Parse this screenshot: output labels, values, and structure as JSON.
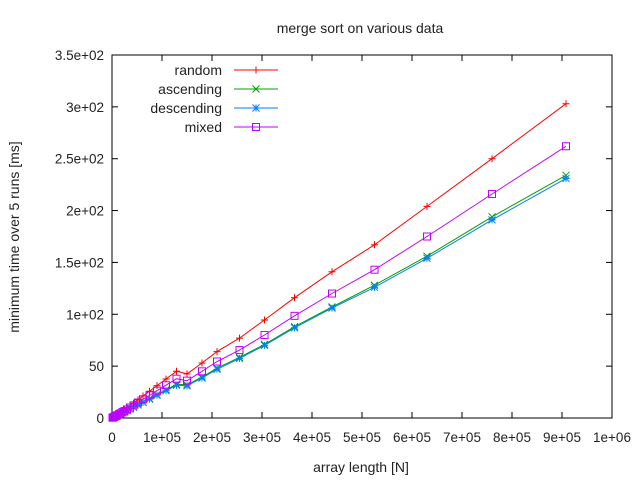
{
  "chart_data": {
    "type": "line",
    "title": "merge sort on various data",
    "xlabel": "array length [N]",
    "ylabel": "minimum time over 5 runs [ms]",
    "xlim": [
      0,
      1000000
    ],
    "ylim": [
      0,
      350
    ],
    "x_ticks": [
      {
        "value": 0,
        "label": "0"
      },
      {
        "value": 100000,
        "label": "1e+05"
      },
      {
        "value": 200000,
        "label": "2e+05"
      },
      {
        "value": 300000,
        "label": "3e+05"
      },
      {
        "value": 400000,
        "label": "4e+05"
      },
      {
        "value": 500000,
        "label": "5e+05"
      },
      {
        "value": 600000,
        "label": "6e+05"
      },
      {
        "value": 700000,
        "label": "7e+05"
      },
      {
        "value": 800000,
        "label": "8e+05"
      },
      {
        "value": 900000,
        "label": "9e+05"
      },
      {
        "value": 1000000,
        "label": "1e+06"
      }
    ],
    "y_ticks": [
      {
        "value": 0,
        "label": "0"
      },
      {
        "value": 50,
        "label": "50"
      },
      {
        "value": 100,
        "label": "1e+02"
      },
      {
        "value": 150,
        "label": "1.5e+02"
      },
      {
        "value": 200,
        "label": "2e+02"
      },
      {
        "value": 250,
        "label": "2.5e+02"
      },
      {
        "value": 300,
        "label": "3e+02"
      },
      {
        "value": 350,
        "label": "3.5e+02"
      }
    ],
    "grid": false,
    "legend_position": "top-left",
    "x": [
      1000,
      2000,
      4000,
      6000,
      8000,
      10000,
      14000,
      17000,
      21000,
      25000,
      30000,
      36000,
      43000,
      52000,
      62000,
      75000,
      90000,
      108000,
      129000,
      150000,
      180000,
      210000,
      255000,
      305000,
      365000,
      440000,
      525000,
      630000,
      760000,
      908000
    ],
    "series": [
      {
        "name": "random",
        "color": "#ff0000",
        "marker": "plus",
        "values": [
          0.3,
          0.6,
          1.2,
          1.8,
          2.4,
          3.0,
          4.2,
          5.2,
          6.6,
          7.9,
          9.8,
          11.8,
          14.3,
          17.6,
          21.2,
          25.8,
          31.2,
          37.6,
          45.1,
          42.5,
          53.0,
          64.0,
          77.0,
          94.5,
          116.0,
          141.0,
          167.0,
          204.0,
          250.0,
          303.0
        ]
      },
      {
        "name": "ascending",
        "color": "#00a000",
        "marker": "x",
        "values": [
          0.2,
          0.5,
          0.9,
          1.4,
          1.9,
          2.3,
          3.3,
          4.0,
          5.0,
          6.0,
          7.3,
          8.8,
          10.6,
          12.9,
          15.5,
          18.8,
          22.6,
          27.2,
          32.5,
          32.0,
          39.5,
          48.0,
          58.5,
          71.0,
          88.0,
          107.0,
          128.0,
          156.0,
          194.0,
          234.0
        ]
      },
      {
        "name": "descending",
        "color": "#0080ff",
        "marker": "star",
        "values": [
          0.2,
          0.5,
          0.9,
          1.3,
          1.8,
          2.2,
          3.2,
          3.9,
          4.9,
          5.8,
          7.1,
          8.5,
          10.3,
          12.5,
          15.0,
          18.2,
          21.9,
          26.4,
          31.5,
          31.0,
          38.5,
          47.0,
          57.5,
          70.0,
          87.0,
          106.0,
          126.0,
          154.0,
          191.0,
          231.0
        ]
      },
      {
        "name": "mixed",
        "color": "#c000ff",
        "marker": "square",
        "values": [
          0.3,
          0.5,
          1.0,
          1.6,
          2.1,
          2.6,
          3.7,
          4.5,
          5.7,
          6.8,
          8.3,
          10.1,
          12.2,
          14.9,
          18.0,
          21.8,
          26.3,
          31.6,
          37.9,
          36.0,
          45.0,
          54.5,
          65.5,
          80.0,
          98.5,
          120.0,
          143.0,
          175.0,
          216.0,
          262.0
        ]
      }
    ]
  }
}
